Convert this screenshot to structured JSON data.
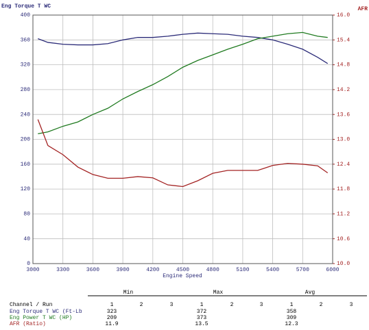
{
  "chart_data": {
    "type": "line",
    "y_label": "Eng Torque T WC",
    "y2_label": "AFR",
    "x_label": "Engine Speed",
    "x": [
      3050,
      3150,
      3300,
      3450,
      3600,
      3750,
      3900,
      4050,
      4200,
      4350,
      4500,
      4650,
      4800,
      4950,
      5100,
      5250,
      5400,
      5550,
      5700,
      5850,
      5950
    ],
    "series": [
      {
        "name": "Eng Torque T WC (Ft-Lb",
        "color": "#2b2b78",
        "values": [
          362,
          356,
          353,
          352,
          352,
          354,
          360,
          364,
          364,
          366,
          369,
          371,
          370,
          369,
          366,
          364,
          360,
          353,
          345,
          332,
          322
        ]
      },
      {
        "name": "Eng Power T WC (HP)",
        "color": "#1f7a1f",
        "values": [
          209,
          212,
          221,
          228,
          240,
          250,
          265,
          277,
          288,
          301,
          316,
          327,
          336,
          345,
          353,
          362,
          366,
          370,
          372,
          366,
          364
        ]
      },
      {
        "name": "AFR (Ratio)",
        "color": "#a32222",
        "axis": "y2",
        "values": [
          13.48,
          12.85,
          12.63,
          12.33,
          12.15,
          12.06,
          12.06,
          12.1,
          12.07,
          11.9,
          11.86,
          12.0,
          12.18,
          12.25,
          12.25,
          12.25,
          12.37,
          12.42,
          12.4,
          12.36,
          12.19
        ]
      }
    ],
    "xlim": [
      3000,
      6000
    ],
    "xticks": [
      3000,
      3300,
      3600,
      3900,
      4200,
      4500,
      4800,
      5100,
      5400,
      5700,
      6000
    ],
    "ylim": [
      0,
      400
    ],
    "yticks": [
      0,
      40,
      80,
      120,
      160,
      200,
      240,
      280,
      320,
      360,
      400
    ],
    "y2lim": [
      10,
      16
    ],
    "y2ticks": [
      {
        "value": 10,
        "label": "10.0"
      },
      10.6,
      11.2,
      11.8,
      12.4,
      {
        "value": 13,
        "label": "13.0"
      },
      13.6,
      14.2,
      14.8,
      15.4,
      {
        "value": 16,
        "label": "16.0"
      }
    ],
    "grid": true
  },
  "table": {
    "groups": [
      "Min",
      "Max",
      "Avg"
    ],
    "header_label": "Channel / Run",
    "runs": [
      1,
      2,
      3
    ],
    "rows": [
      {
        "label": "Eng Torque T WC (Ft-Lb",
        "values": [
          323,
          372,
          358
        ]
      },
      {
        "label": "Eng Power T WC (HP)",
        "values": [
          209,
          373,
          309
        ]
      },
      {
        "label": "AFR (Ratio)",
        "values": [
          11.9,
          13.5,
          12.3
        ]
      }
    ]
  }
}
